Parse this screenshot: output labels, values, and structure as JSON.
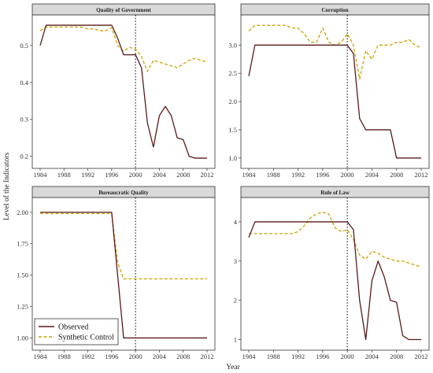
{
  "figure": {
    "ylabel": "Level of the Indicators",
    "xlabel": "Year",
    "legend": {
      "position": "bottom-left",
      "entries": [
        {
          "label": "Observed",
          "color": "#5a1a1a",
          "dash": "solid"
        },
        {
          "label": "Synthetic Control",
          "color": "#c9a400",
          "dash": "dashed"
        }
      ]
    },
    "treatment_year": 2000,
    "strip_color": "#d9d9d9"
  },
  "chart_data": [
    {
      "type": "line",
      "title": "Quality of Government",
      "x": [
        1984,
        1985,
        1986,
        1987,
        1988,
        1989,
        1990,
        1991,
        1992,
        1993,
        1994,
        1995,
        1996,
        1997,
        1998,
        1999,
        2000,
        2001,
        2002,
        2003,
        2004,
        2005,
        2006,
        2007,
        2008,
        2009,
        2010,
        2011,
        2012
      ],
      "xlim": [
        1984,
        2012
      ],
      "ylim": [
        0.18,
        0.57
      ],
      "xticks": [
        "1984",
        "1988",
        "1992",
        "1996",
        "2000",
        "2004",
        "2008",
        "2012"
      ],
      "yticks": [
        "0.2",
        "0.3",
        "0.4",
        "0.5"
      ],
      "series": [
        {
          "name": "Observed",
          "values": [
            0.5,
            0.555,
            0.555,
            0.555,
            0.555,
            0.555,
            0.555,
            0.555,
            0.555,
            0.555,
            0.555,
            0.555,
            0.555,
            0.52,
            0.475,
            0.475,
            0.475,
            0.44,
            0.29,
            0.225,
            0.31,
            0.335,
            0.31,
            0.25,
            0.245,
            0.2,
            0.195,
            0.195,
            0.195
          ]
        },
        {
          "name": "Synthetic Control",
          "values": [
            0.54,
            0.55,
            0.55,
            0.55,
            0.55,
            0.55,
            0.55,
            0.55,
            0.545,
            0.545,
            0.54,
            0.54,
            0.548,
            0.5,
            0.485,
            0.495,
            0.49,
            0.47,
            0.43,
            0.46,
            0.455,
            0.45,
            0.445,
            0.44,
            0.45,
            0.46,
            0.465,
            0.46,
            0.455
          ]
        }
      ]
    },
    {
      "type": "line",
      "title": "Corruption",
      "x": [
        1984,
        1985,
        1986,
        1987,
        1988,
        1989,
        1990,
        1991,
        1992,
        1993,
        1994,
        1995,
        1996,
        1997,
        1998,
        1999,
        2000,
        2001,
        2002,
        2003,
        2004,
        2005,
        2006,
        2007,
        2008,
        2009,
        2010,
        2011,
        2012
      ],
      "xlim": [
        1984,
        2012
      ],
      "ylim": [
        0.9,
        3.45
      ],
      "xticks": [
        "1984",
        "1988",
        "1992",
        "1996",
        "2000",
        "2004",
        "2008",
        "2012"
      ],
      "yticks": [
        "1.0",
        "1.5",
        "2.0",
        "2.5",
        "3.0"
      ],
      "series": [
        {
          "name": "Observed",
          "values": [
            2.45,
            3.0,
            3.0,
            3.0,
            3.0,
            3.0,
            3.0,
            3.0,
            3.0,
            3.0,
            3.0,
            3.0,
            3.0,
            3.0,
            3.0,
            3.0,
            3.0,
            2.85,
            1.7,
            1.5,
            1.5,
            1.5,
            1.5,
            1.5,
            1.0,
            1.0,
            1.0,
            1.0,
            1.0
          ]
        },
        {
          "name": "Synthetic Control",
          "values": [
            3.25,
            3.35,
            3.35,
            3.35,
            3.35,
            3.35,
            3.35,
            3.3,
            3.3,
            3.2,
            3.05,
            3.05,
            3.3,
            3.05,
            3.0,
            3.05,
            3.2,
            3.0,
            2.4,
            2.9,
            2.75,
            3.0,
            3.0,
            3.0,
            3.05,
            3.05,
            3.1,
            3.0,
            2.95
          ]
        }
      ]
    },
    {
      "type": "line",
      "title": "Bureaucratic Quality",
      "x": [
        1984,
        1985,
        1986,
        1987,
        1988,
        1989,
        1990,
        1991,
        1992,
        1993,
        1994,
        1995,
        1996,
        1997,
        1998,
        1999,
        2000,
        2001,
        2002,
        2003,
        2004,
        2005,
        2006,
        2007,
        2008,
        2009,
        2010,
        2011,
        2012
      ],
      "xlim": [
        1984,
        2012
      ],
      "ylim": [
        0.94,
        2.08
      ],
      "xticks": [
        "1984",
        "1988",
        "1992",
        "1996",
        "2000",
        "2004",
        "2008",
        "2012"
      ],
      "yticks": [
        "1.00",
        "1.25",
        "1.50",
        "1.75",
        "2.00"
      ],
      "series": [
        {
          "name": "Observed",
          "values": [
            2.0,
            2.0,
            2.0,
            2.0,
            2.0,
            2.0,
            2.0,
            2.0,
            2.0,
            2.0,
            2.0,
            2.0,
            2.0,
            1.5,
            1.0,
            1.0,
            1.0,
            1.0,
            1.0,
            1.0,
            1.0,
            1.0,
            1.0,
            1.0,
            1.0,
            1.0,
            1.0,
            1.0,
            1.0
          ]
        },
        {
          "name": "Synthetic Control",
          "values": [
            1.99,
            1.99,
            1.99,
            1.99,
            1.99,
            1.99,
            1.99,
            1.99,
            1.99,
            1.99,
            1.99,
            1.99,
            1.99,
            1.6,
            1.47,
            1.47,
            1.47,
            1.47,
            1.47,
            1.47,
            1.47,
            1.47,
            1.47,
            1.47,
            1.47,
            1.47,
            1.47,
            1.47,
            1.47
          ]
        }
      ]
    },
    {
      "type": "line",
      "title": "Rule of Law",
      "x": [
        1984,
        1985,
        1986,
        1987,
        1988,
        1989,
        1990,
        1991,
        1992,
        1993,
        1994,
        1995,
        1996,
        1997,
        1998,
        1999,
        2000,
        2001,
        2002,
        2003,
        2004,
        2005,
        2006,
        2007,
        2008,
        2009,
        2010,
        2011,
        2012
      ],
      "xlim": [
        1984,
        2012
      ],
      "ylim": [
        0.85,
        4.5
      ],
      "xticks": [
        "1984",
        "1988",
        "1992",
        "1996",
        "2000",
        "2004",
        "2008",
        "2012"
      ],
      "yticks": [
        "1",
        "2",
        "3",
        "4"
      ],
      "series": [
        {
          "name": "Observed",
          "values": [
            3.6,
            4.0,
            4.0,
            4.0,
            4.0,
            4.0,
            4.0,
            4.0,
            4.0,
            4.0,
            4.0,
            4.0,
            4.0,
            4.0,
            4.0,
            4.0,
            4.0,
            3.8,
            2.0,
            1.0,
            2.5,
            3.0,
            2.6,
            2.0,
            1.95,
            1.1,
            1.0,
            1.0,
            1.0
          ]
        },
        {
          "name": "Synthetic Control",
          "values": [
            3.7,
            3.7,
            3.7,
            3.7,
            3.7,
            3.7,
            3.7,
            3.7,
            3.75,
            3.9,
            4.1,
            4.2,
            4.25,
            4.2,
            3.85,
            3.75,
            3.8,
            3.55,
            3.15,
            3.05,
            3.25,
            3.2,
            3.1,
            3.05,
            3.0,
            3.0,
            2.95,
            2.9,
            2.85
          ]
        }
      ]
    }
  ]
}
